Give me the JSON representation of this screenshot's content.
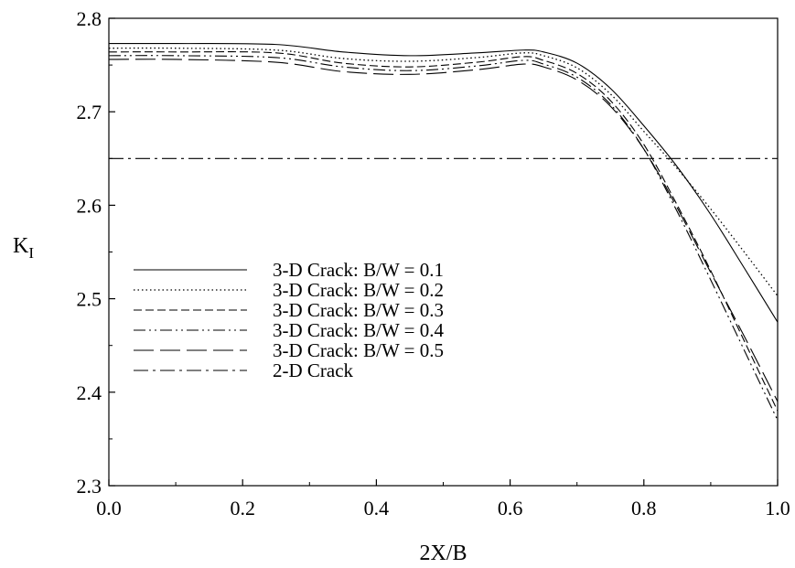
{
  "chart_data": {
    "type": "line",
    "title": "",
    "xlabel": "2X/B",
    "ylabel_main": "K",
    "ylabel_sub": "I",
    "xlim": [
      0.0,
      1.0
    ],
    "ylim": [
      2.3,
      2.8
    ],
    "xticks": [
      "0.0",
      "0.2",
      "0.4",
      "0.6",
      "0.8",
      "1.0"
    ],
    "yticks": [
      "2.3",
      "2.4",
      "2.5",
      "2.6",
      "2.7",
      "2.8"
    ],
    "grid": false,
    "legend_position": "center-left",
    "series": [
      {
        "name": "3-D Crack: B/W = 0.1",
        "style": "solid",
        "x": [
          0.0,
          0.1,
          0.25,
          0.35,
          0.45,
          0.55,
          0.62,
          0.65,
          0.7,
          0.75,
          0.8,
          0.85,
          0.9,
          0.95,
          1.0
        ],
        "y": [
          2.773,
          2.773,
          2.772,
          2.764,
          2.76,
          2.763,
          2.766,
          2.764,
          2.752,
          2.725,
          2.685,
          2.641,
          2.59,
          2.533,
          2.475
        ]
      },
      {
        "name": "3-D Crack: B/W = 0.2",
        "style": "dotted",
        "x": [
          0.0,
          0.1,
          0.25,
          0.35,
          0.45,
          0.55,
          0.62,
          0.65,
          0.7,
          0.75,
          0.8,
          0.85,
          0.9,
          0.95,
          1.0
        ],
        "y": [
          2.768,
          2.768,
          2.766,
          2.757,
          2.754,
          2.758,
          2.763,
          2.76,
          2.747,
          2.719,
          2.679,
          2.639,
          2.596,
          2.55,
          2.503
        ]
      },
      {
        "name": "3-D Crack: B/W = 0.3",
        "style": "short-dash",
        "x": [
          0.0,
          0.1,
          0.25,
          0.35,
          0.45,
          0.55,
          0.62,
          0.65,
          0.7,
          0.75,
          0.8,
          0.85,
          0.9,
          0.95,
          1.0
        ],
        "y": [
          2.764,
          2.764,
          2.763,
          2.752,
          2.748,
          2.753,
          2.759,
          2.755,
          2.741,
          2.712,
          2.665,
          2.6,
          2.53,
          2.455,
          2.38
        ]
      },
      {
        "name": "3-D Crack: B/W = 0.4",
        "style": "dash-dot-dot",
        "x": [
          0.0,
          0.1,
          0.25,
          0.35,
          0.45,
          0.55,
          0.62,
          0.65,
          0.7,
          0.75,
          0.8,
          0.85,
          0.9,
          0.95,
          1.0
        ],
        "y": [
          2.76,
          2.76,
          2.758,
          2.748,
          2.744,
          2.749,
          2.755,
          2.751,
          2.737,
          2.708,
          2.66,
          2.593,
          2.52,
          2.445,
          2.37
        ]
      },
      {
        "name": "3-D Crack: B/W = 0.5",
        "style": "long-dash",
        "x": [
          0.0,
          0.1,
          0.25,
          0.35,
          0.45,
          0.55,
          0.62,
          0.65,
          0.7,
          0.75,
          0.8,
          0.85,
          0.9,
          0.95,
          1.0
        ],
        "y": [
          2.756,
          2.756,
          2.753,
          2.743,
          2.74,
          2.745,
          2.751,
          2.748,
          2.734,
          2.706,
          2.66,
          2.597,
          2.528,
          2.46,
          2.39
        ]
      },
      {
        "name": "2-D Crack",
        "style": "dash-dot",
        "x": [
          0.0,
          1.0
        ],
        "y": [
          2.65,
          2.65
        ]
      }
    ]
  }
}
